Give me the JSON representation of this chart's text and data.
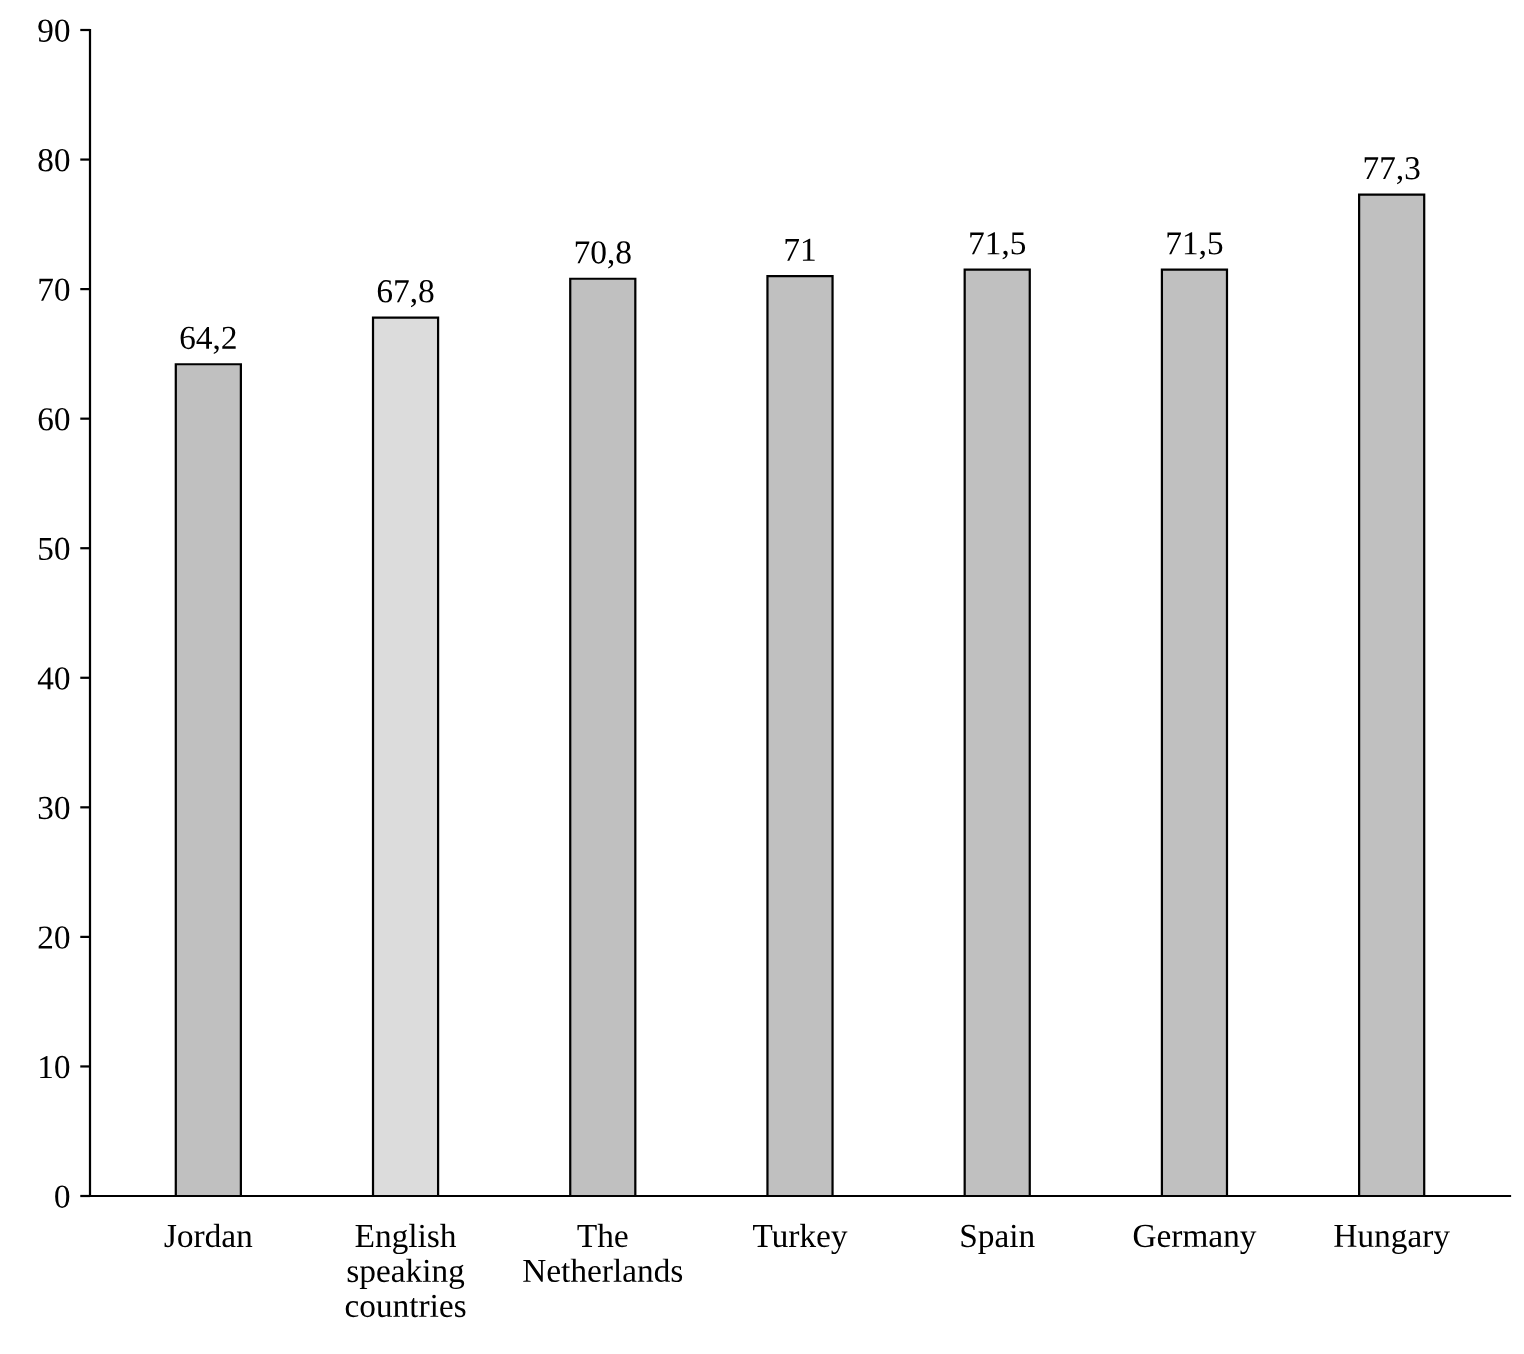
{
  "chart_data": {
    "type": "bar",
    "categories": [
      "Jordan",
      "English\nspeaking\ncountries",
      "The\nNetherlands",
      "Turkey",
      "Spain",
      "Germany",
      "Hungary"
    ],
    "values": [
      64.2,
      67.8,
      70.8,
      71,
      71.5,
      71.5,
      77.3
    ],
    "value_labels": [
      "64,2",
      "67,8",
      "70,8",
      "71",
      "71,5",
      "71,5",
      "77,3"
    ],
    "colors": [
      "#c0c0c0",
      "#dcdcdc",
      "#c0c0c0",
      "#c0c0c0",
      "#c0c0c0",
      "#c0c0c0",
      "#c0c0c0"
    ],
    "ylim": [
      0,
      90
    ],
    "yticks": [
      0,
      10,
      20,
      30,
      40,
      50,
      60,
      70,
      80,
      90
    ],
    "grid": false,
    "legend": false
  }
}
